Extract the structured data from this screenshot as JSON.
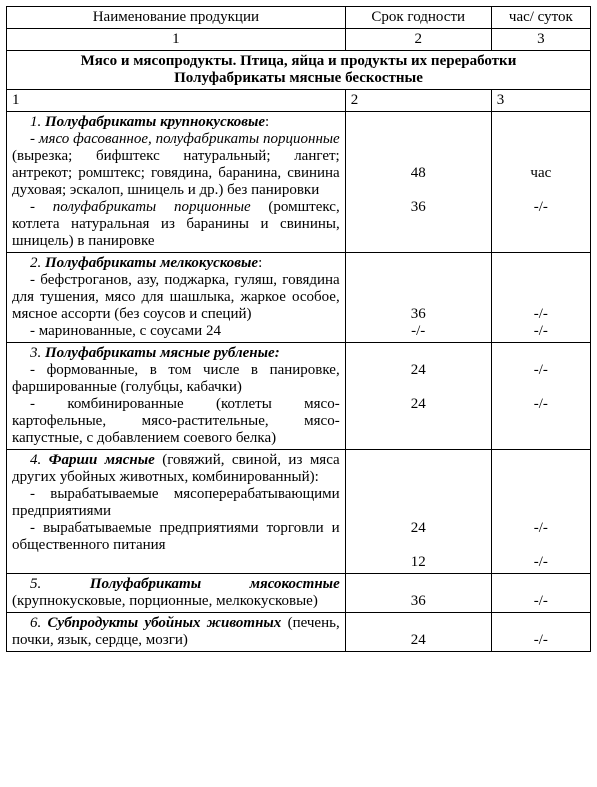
{
  "header": {
    "col1": "Наименование продукции",
    "col2": "Срок годности",
    "col3": "час/ суток",
    "n1": "1",
    "n2": "2",
    "n3": "3"
  },
  "section": {
    "title": "Мясо и мясопродукты. Птица, яйца и продукты их переработки",
    "subtitle": "Полуфабрикаты мясные бескостные"
  },
  "subhdr": {
    "a": "1",
    "b": "2",
    "c": "3"
  },
  "r1": {
    "lead": "1.",
    "title": "Полуфабрикаты крупнокусковые",
    "line1a": "- мясо фасованное, полуфабрикаты порционные",
    "line1b": " (вырезка; бифштекс натуральный; лангет; антрекот; ромштекс; говядина, баранина, свинина духовая; эскалоп, шницель и др.) без панировки",
    "v1": "48",
    "u1": "час",
    "line2a": "- полуфабрикаты порционные",
    "line2b": " (ромштекс, котлета натуральная из баранины и свинины, шницель) в панировке",
    "v2": "36",
    "u2": "-/-"
  },
  "r2": {
    "lead": "2.",
    "title": "Полуфабрикаты мелкокусковые",
    "line1": "- бефстроганов, азу, поджарка, гуляш, говядина для тушения, мясо для шашлыка, жаркое особое, мясное ассорти (без соусов и специй)",
    "line2": "- маринованные, с соусами 24",
    "v1": "36",
    "u1": "-/-",
    "v2": "-/-",
    "u2": "-/-"
  },
  "r3": {
    "lead": "3.",
    "title": "Полуфабрикаты мясные рубленые:",
    "line1": "- формованные, в том числе в панировке, фаршированные (голубцы, кабачки)",
    "line2": "- комбинированные (котлеты мясо-картофельные, мясо-растительные, мясо-капустные, с добавлением соевого белка)",
    "v1": "24",
    "u1": "-/-",
    "v2": "24",
    "u2": "-/-"
  },
  "r4": {
    "lead": "4.",
    "title": "Фарши мясные",
    "tail": " (говяжий, свиной, из мяса других убойных животных, комбинированный):",
    "line1": "- вырабатываемые мясоперерабатывающими предприятиями",
    "line2": "- вырабатываемые предприятиями торговли и общественного питания",
    "v1": "24",
    "u1": "-/-",
    "v2": "12",
    "u2": "-/-"
  },
  "r5": {
    "lead": "5.",
    "title": "Полуфабрикаты мясокостные",
    "tail": " (крупнокусковые, порционные, мелкокусковые)",
    "v": "36",
    "u": "-/-"
  },
  "r6": {
    "lead": "6.",
    "title": "Субпродукты убойных животных",
    "tail": " (печень, почки, язык, сердце, мозги)",
    "v": "24",
    "u": "-/-"
  }
}
